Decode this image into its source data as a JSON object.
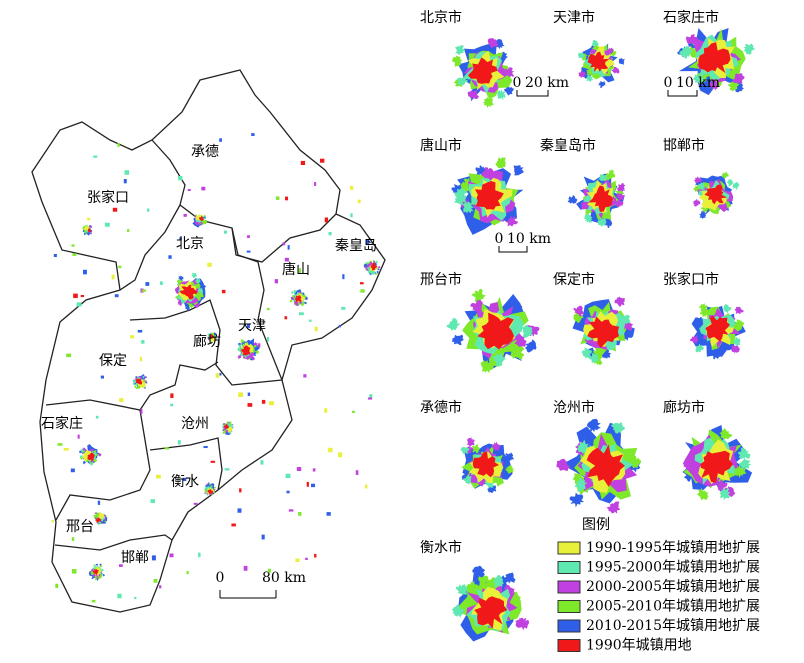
{
  "map": {
    "regions": [
      "承德",
      "张家口",
      "北京",
      "秦皇岛",
      "唐山",
      "天津",
      "廊坊",
      "保定",
      "沧州",
      "石家庄",
      "衡水",
      "邢台",
      "邯郸"
    ],
    "scale": {
      "start": "0",
      "end": "80 km"
    }
  },
  "panels": [
    {
      "title": "北京市",
      "scale": {
        "start": "0",
        "end": "20 km"
      }
    },
    {
      "title": "天津市"
    },
    {
      "title": "石家庄市",
      "scale": {
        "start": "0",
        "end": "10 km"
      }
    },
    {
      "title": "唐山市",
      "scale": {
        "start": "0",
        "end": "10 km"
      }
    },
    {
      "title": "秦皇岛市"
    },
    {
      "title": "邯郸市"
    },
    {
      "title": "邢台市"
    },
    {
      "title": "保定市"
    },
    {
      "title": "张家口市"
    },
    {
      "title": "承德市"
    },
    {
      "title": "沧州市"
    },
    {
      "title": "廊坊市"
    },
    {
      "title": "衡水市"
    }
  ],
  "legend": {
    "title": "图例",
    "items": [
      {
        "label": "1990-1995年城镇用地扩展",
        "color": "#e8f03a"
      },
      {
        "label": "1995-2000年城镇用地扩展",
        "color": "#5fe8b0"
      },
      {
        "label": "2000-2005年城镇用地扩展",
        "color": "#c040e0"
      },
      {
        "label": "2005-2010年城镇用地扩展",
        "color": "#7ee82a"
      },
      {
        "label": "2010-2015年城镇用地扩展",
        "color": "#2f5fe8"
      },
      {
        "label": "1990年城镇用地",
        "color": "#f01818"
      }
    ]
  }
}
